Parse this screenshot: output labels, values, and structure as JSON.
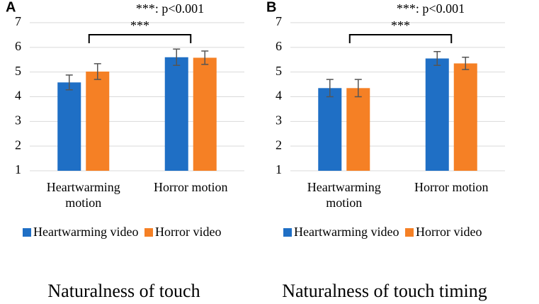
{
  "chart_data": [
    {
      "type": "bar",
      "panel": "A",
      "title": "Naturalness of touch",
      "annotation": "***: p<0.001",
      "significance": "***",
      "categories": [
        "Heartwarming motion",
        "Horror motion"
      ],
      "series": [
        {
          "name": "Heartwarming video",
          "color": "#1f6fc5",
          "values": [
            4.58,
            5.6
          ],
          "errors": [
            0.3,
            0.33
          ]
        },
        {
          "name": "Horror video",
          "color": "#f58025",
          "values": [
            5.02,
            5.58
          ],
          "errors": [
            0.32,
            0.27
          ]
        }
      ],
      "ylim": [
        1,
        7
      ],
      "yticks": [
        1,
        2,
        3,
        4,
        5,
        6,
        7
      ],
      "grid": true
    },
    {
      "type": "bar",
      "panel": "B",
      "title": "Naturalness of touch timing",
      "annotation": "***: p<0.001",
      "significance": "***",
      "categories": [
        "Heartwarming motion",
        "Horror motion"
      ],
      "series": [
        {
          "name": "Heartwarming video",
          "color": "#1f6fc5",
          "values": [
            4.35,
            5.55
          ],
          "errors": [
            0.35,
            0.28
          ]
        },
        {
          "name": "Horror video",
          "color": "#f58025",
          "values": [
            4.35,
            5.35
          ],
          "errors": [
            0.35,
            0.25
          ]
        }
      ],
      "ylim": [
        1,
        7
      ],
      "yticks": [
        1,
        2,
        3,
        4,
        5,
        6,
        7
      ],
      "grid": true
    }
  ]
}
